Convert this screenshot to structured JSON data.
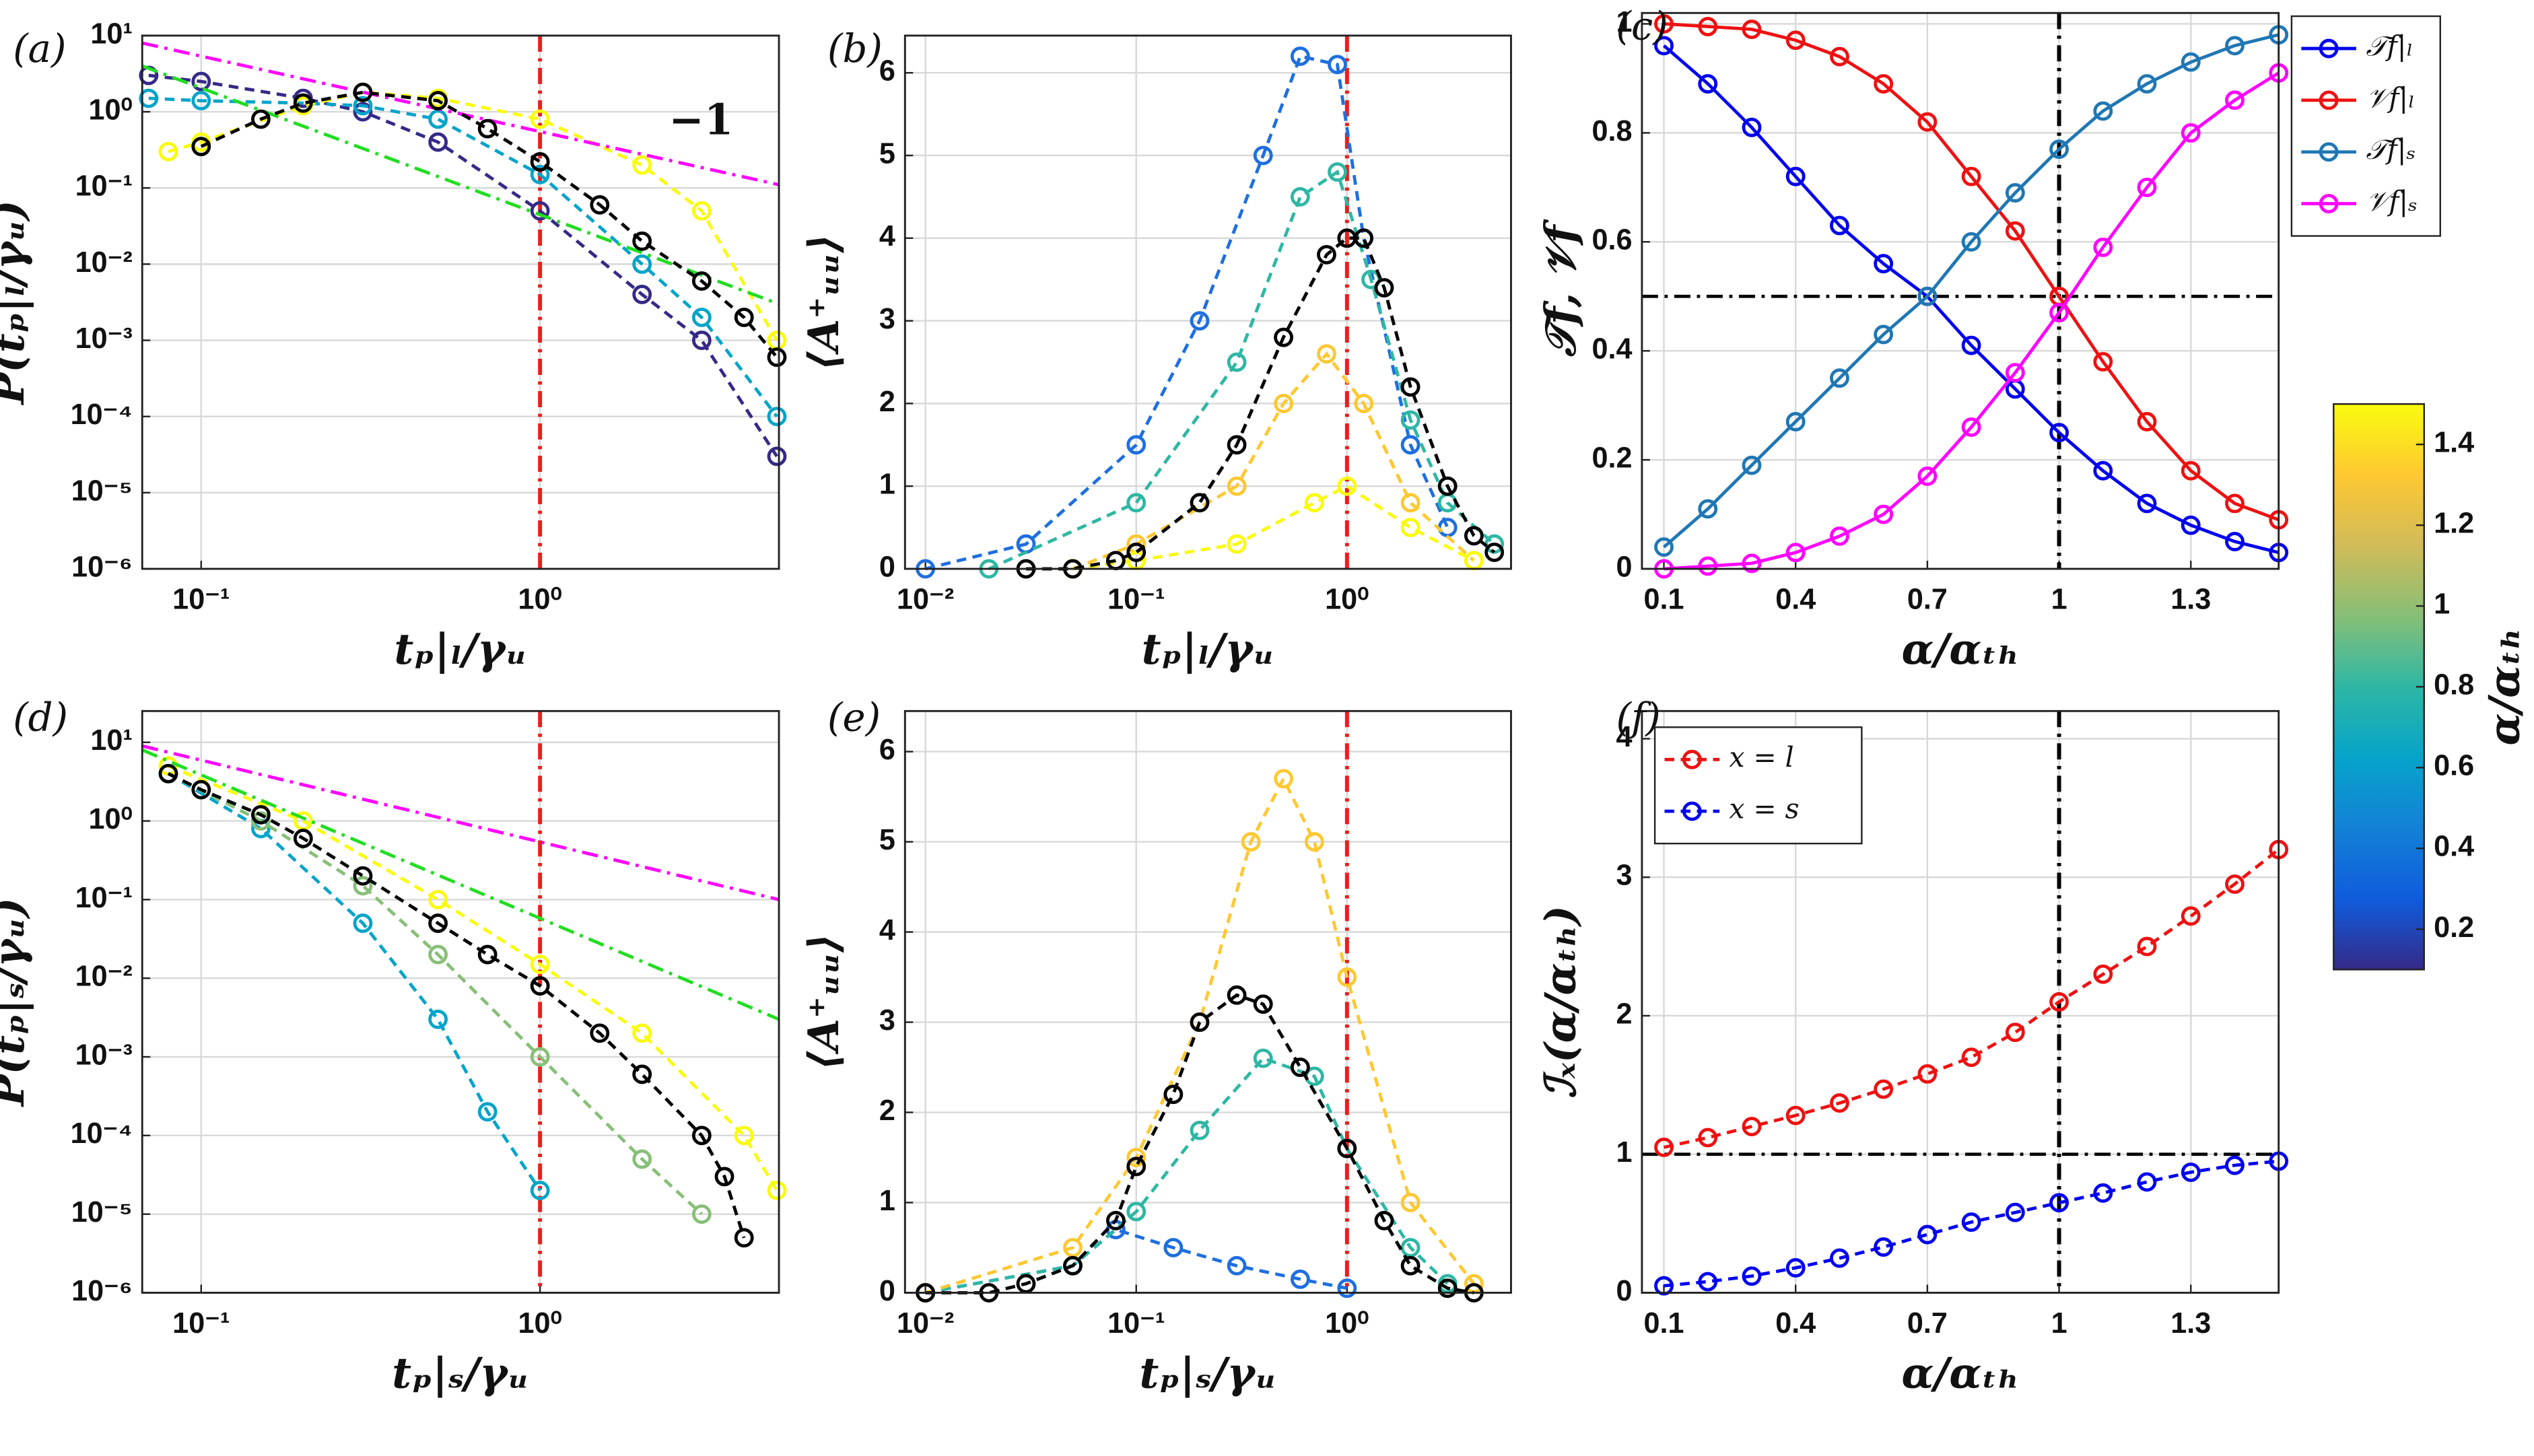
{
  "chart_data": [
    {
      "type": "line",
      "title": "(a)",
      "xlabel": "tₚ|ₗ/γᵤ",
      "ylabel": "P(tₚ|ₗ/γᵤ)",
      "xscale": "log",
      "yscale": "log",
      "grid": true,
      "xlim": [
        0.067,
        5.07
      ],
      "ylim": [
        1e-06,
        10
      ],
      "xticks": [
        {
          "value": 0.1,
          "label": "10⁻¹"
        },
        {
          "value": 1,
          "label": "10⁰"
        }
      ],
      "yticks": [
        {
          "value": 1e-06,
          "label": "10⁻⁶"
        },
        {
          "value": 1e-05,
          "label": "10⁻⁵"
        },
        {
          "value": 0.0001,
          "label": "10⁻⁴"
        },
        {
          "value": 0.001,
          "label": "10⁻³"
        },
        {
          "value": 0.01,
          "label": "10⁻²"
        },
        {
          "value": 0.1,
          "label": "10⁻¹"
        },
        {
          "value": 1,
          "label": "10⁰"
        },
        {
          "value": 10,
          "label": "10¹"
        }
      ],
      "vlines": [
        {
          "value": 1,
          "color": "#e8201c"
        }
      ],
      "series": [
        {
          "color": "#352a87",
          "style": "dashed",
          "marker": true,
          "x": [
            0.07,
            0.1,
            0.2,
            0.3,
            0.5,
            1,
            2,
            3,
            5
          ],
          "values": [
            3,
            2.5,
            1.5,
            1,
            0.4,
            0.05,
            0.004,
            0.001,
            3e-05
          ]
        },
        {
          "color": "#06a4ca",
          "style": "dashed",
          "marker": true,
          "x": [
            0.07,
            0.1,
            0.2,
            0.3,
            0.5,
            1,
            2,
            3,
            5
          ],
          "values": [
            1.5,
            1.4,
            1.3,
            1.2,
            0.8,
            0.15,
            0.01,
            0.002,
            0.0001
          ]
        },
        {
          "color": "#f9fb0e",
          "style": "dashed",
          "marker": true,
          "x": [
            0.08,
            0.1,
            0.2,
            0.3,
            0.5,
            1,
            2,
            3,
            5
          ],
          "values": [
            0.3,
            0.4,
            1.2,
            1.8,
            1.5,
            0.8,
            0.2,
            0.05,
            0.001
          ]
        },
        {
          "color": "#ff00ff",
          "style": "dashdot",
          "marker": false,
          "x": [
            0.067,
            5.07
          ],
          "values": [
            8,
            0.11
          ]
        },
        {
          "color": "#22dd22",
          "style": "dashdot",
          "marker": false,
          "x": [
            0.067,
            5.07
          ],
          "values": [
            4,
            0.003
          ]
        },
        {
          "color": "#000000",
          "style": "dashed",
          "marker": true,
          "x": [
            0.1,
            0.15,
            0.2,
            0.3,
            0.5,
            0.7,
            1,
            1.5,
            2,
            3,
            4,
            5
          ],
          "values": [
            0.35,
            0.8,
            1.3,
            1.8,
            1.4,
            0.6,
            0.22,
            0.06,
            0.02,
            0.006,
            0.002,
            0.0006
          ]
        }
      ],
      "annotations": [
        {
          "text": "−1",
          "x": 2.4,
          "y": 0.7,
          "color": "#ff00ff"
        }
      ]
    },
    {
      "type": "line",
      "title": "(b)",
      "xlabel": "tₚ|ₗ/γᵤ",
      "ylabel": "⟨A⁺ᵤᵤ⟩",
      "xscale": "log",
      "grid": true,
      "xlim": [
        0.008,
        6
      ],
      "ylim": [
        0,
        6.45
      ],
      "xticks": [
        {
          "value": 0.01,
          "label": "10⁻²"
        },
        {
          "value": 0.1,
          "label": "10⁻¹"
        },
        {
          "value": 1,
          "label": "10⁰"
        }
      ],
      "yticks": [
        0,
        1,
        2,
        3,
        4,
        5,
        6
      ],
      "vlines": [
        {
          "value": 1,
          "color": "#e8201c"
        }
      ],
      "series": [
        {
          "color": "#1e6fe0",
          "style": "dashed",
          "marker": true,
          "x": [
            0.01,
            0.03,
            0.1,
            0.2,
            0.4,
            0.6,
            0.9,
            1.2,
            2,
            3
          ],
          "values": [
            0,
            0.3,
            1.5,
            3,
            5,
            6.2,
            6.1,
            4,
            1.5,
            0.5
          ]
        },
        {
          "color": "#2eb7a4",
          "style": "dashed",
          "marker": true,
          "x": [
            0.02,
            0.1,
            0.3,
            0.6,
            0.9,
            1.3,
            2,
            3,
            5
          ],
          "values": [
            0,
            0.8,
            2.5,
            4.5,
            4.8,
            3.5,
            1.8,
            0.8,
            0.3
          ]
        },
        {
          "color": "#fec832",
          "style": "dashed",
          "marker": true,
          "x": [
            0.05,
            0.1,
            0.3,
            0.5,
            0.8,
            1.2,
            2,
            4
          ],
          "values": [
            0,
            0.3,
            1,
            2,
            2.6,
            2,
            0.8,
            0.1
          ]
        },
        {
          "color": "#f9fb0e",
          "style": "dashed",
          "marker": true,
          "x": [
            0.05,
            0.1,
            0.3,
            0.7,
            1,
            2,
            4
          ],
          "values": [
            0,
            0.1,
            0.3,
            0.8,
            1,
            0.5,
            0.1
          ]
        },
        {
          "color": "#000000",
          "style": "dashed",
          "marker": true,
          "x": [
            0.03,
            0.05,
            0.08,
            0.1,
            0.2,
            0.3,
            0.5,
            0.8,
            1,
            1.2,
            1.5,
            2,
            3,
            4,
            5
          ],
          "values": [
            0,
            0,
            0.1,
            0.2,
            0.8,
            1.5,
            2.8,
            3.8,
            4,
            4,
            3.4,
            2.2,
            1,
            0.4,
            0.2
          ]
        }
      ]
    },
    {
      "type": "line",
      "title": "(c)",
      "xlabel": "α/αₜₕ",
      "ylabel": "𝒯f, 𝒱f",
      "grid": true,
      "legend": "outside-right",
      "xlim": [
        0.05,
        1.5
      ],
      "ylim": [
        0,
        1.02
      ],
      "xticks": [
        0.1,
        0.4,
        0.7,
        1,
        1.3
      ],
      "yticks": [
        0,
        0.2,
        0.4,
        0.6,
        0.8,
        1
      ],
      "hlines": [
        {
          "value": 0.5,
          "color": "#000000"
        }
      ],
      "vlines": [
        {
          "value": 1,
          "color": "#000000"
        }
      ],
      "series": [
        {
          "name": "𝒯f|ₗ",
          "color": "#0000ee",
          "style": "solid",
          "marker": true,
          "x": [
            0.1,
            0.2,
            0.3,
            0.4,
            0.5,
            0.6,
            0.7,
            0.8,
            0.9,
            1,
            1.1,
            1.2,
            1.3,
            1.4,
            1.5
          ],
          "values": [
            0.96,
            0.89,
            0.81,
            0.72,
            0.63,
            0.56,
            0.5,
            0.41,
            0.33,
            0.25,
            0.18,
            0.12,
            0.08,
            0.05,
            0.03
          ]
        },
        {
          "name": "𝒱f|ₗ",
          "color": "#ee1111",
          "style": "solid",
          "marker": true,
          "x": [
            0.1,
            0.2,
            0.3,
            0.4,
            0.5,
            0.6,
            0.7,
            0.8,
            0.9,
            1,
            1.1,
            1.2,
            1.3,
            1.4,
            1.5
          ],
          "values": [
            1,
            0.995,
            0.99,
            0.97,
            0.94,
            0.89,
            0.82,
            0.72,
            0.62,
            0.5,
            0.38,
            0.27,
            0.18,
            0.12,
            0.09
          ]
        },
        {
          "name": "𝒯f|ₛ",
          "color": "#1f77b4",
          "style": "solid",
          "marker": true,
          "x": [
            0.1,
            0.2,
            0.3,
            0.4,
            0.5,
            0.6,
            0.7,
            0.8,
            0.9,
            1,
            1.1,
            1.2,
            1.3,
            1.4,
            1.5
          ],
          "values": [
            0.04,
            0.11,
            0.19,
            0.27,
            0.35,
            0.43,
            0.5,
            0.6,
            0.69,
            0.77,
            0.84,
            0.89,
            0.93,
            0.96,
            0.98
          ]
        },
        {
          "name": "𝒱f|ₛ",
          "color": "#ff00ff",
          "style": "solid",
          "marker": true,
          "x": [
            0.1,
            0.2,
            0.3,
            0.4,
            0.5,
            0.6,
            0.7,
            0.8,
            0.9,
            1,
            1.1,
            1.2,
            1.3,
            1.4,
            1.5
          ],
          "values": [
            0,
            0.005,
            0.01,
            0.03,
            0.06,
            0.1,
            0.17,
            0.26,
            0.36,
            0.47,
            0.59,
            0.7,
            0.8,
            0.86,
            0.91
          ]
        }
      ]
    },
    {
      "type": "line",
      "title": "(d)",
      "xlabel": "tₚ|ₛ/γᵤ",
      "ylabel": "P(tₚ|ₛ/γᵤ)",
      "xscale": "log",
      "yscale": "log",
      "grid": true,
      "xlim": [
        0.067,
        5.07
      ],
      "ylim": [
        1e-06,
        25
      ],
      "xticks": [
        {
          "value": 0.1,
          "label": "10⁻¹"
        },
        {
          "value": 1,
          "label": "10⁰"
        }
      ],
      "yticks": [
        {
          "value": 1e-06,
          "label": "10⁻⁶"
        },
        {
          "value": 1e-05,
          "label": "10⁻⁵"
        },
        {
          "value": 0.0001,
          "label": "10⁻⁴"
        },
        {
          "value": 0.001,
          "label": "10⁻³"
        },
        {
          "value": 0.01,
          "label": "10⁻²"
        },
        {
          "value": 0.1,
          "label": "10⁻¹"
        },
        {
          "value": 1,
          "label": "10⁰"
        },
        {
          "value": 10,
          "label": "10¹"
        }
      ],
      "vlines": [
        {
          "value": 1,
          "color": "#e8201c"
        }
      ],
      "series": [
        {
          "color": "#06a4ca",
          "style": "dashed",
          "marker": true,
          "x": [
            0.08,
            0.15,
            0.3,
            0.5,
            0.7,
            1
          ],
          "values": [
            4,
            0.8,
            0.05,
            0.003,
            0.0002,
            2e-05
          ]
        },
        {
          "color": "#87bf77",
          "style": "dashed",
          "marker": true,
          "x": [
            0.08,
            0.15,
            0.3,
            0.5,
            1,
            2,
            3
          ],
          "values": [
            4,
            1,
            0.15,
            0.02,
            0.001,
            5e-05,
            1e-05
          ]
        },
        {
          "color": "#f9fb0e",
          "style": "dashed",
          "marker": true,
          "x": [
            0.08,
            0.2,
            0.5,
            1,
            2,
            4,
            5
          ],
          "values": [
            5,
            1,
            0.1,
            0.015,
            0.002,
            0.0001,
            2e-05
          ]
        },
        {
          "color": "#ff00ff",
          "style": "dashdot",
          "marker": false,
          "x": [
            0.067,
            5.07
          ],
          "values": [
            9,
            0.1
          ]
        },
        {
          "color": "#22dd22",
          "style": "dashdot",
          "marker": false,
          "x": [
            0.067,
            5.07
          ],
          "values": [
            8,
            0.003
          ]
        },
        {
          "color": "#000000",
          "style": "dashed",
          "marker": true,
          "x": [
            0.08,
            0.1,
            0.15,
            0.2,
            0.3,
            0.5,
            0.7,
            1,
            1.5,
            2,
            3,
            3.5,
            4
          ],
          "values": [
            4,
            2.5,
            1.2,
            0.6,
            0.2,
            0.05,
            0.02,
            0.008,
            0.002,
            0.0006,
            0.0001,
            3e-05,
            5e-06
          ]
        }
      ]
    },
    {
      "type": "line",
      "title": "(e)",
      "xlabel": "tₚ|ₛ/γᵤ",
      "ylabel": "⟨A⁺ᵤᵤ⟩",
      "xscale": "log",
      "grid": true,
      "xlim": [
        0.008,
        6
      ],
      "ylim": [
        0,
        6.45
      ],
      "xticks": [
        {
          "value": 0.01,
          "label": "10⁻²"
        },
        {
          "value": 0.1,
          "label": "10⁻¹"
        },
        {
          "value": 1,
          "label": "10⁰"
        }
      ],
      "yticks": [
        0,
        1,
        2,
        3,
        4,
        5,
        6
      ],
      "vlines": [
        {
          "value": 1,
          "color": "#e8201c"
        }
      ],
      "series": [
        {
          "color": "#1e6fe0",
          "style": "dashed",
          "marker": true,
          "x": [
            0.01,
            0.05,
            0.08,
            0.15,
            0.3,
            0.6,
            1
          ],
          "values": [
            0,
            0.3,
            0.7,
            0.5,
            0.3,
            0.15,
            0.05
          ]
        },
        {
          "color": "#2eb7a4",
          "style": "dashed",
          "marker": true,
          "x": [
            0.01,
            0.05,
            0.1,
            0.2,
            0.4,
            0.7,
            1,
            2,
            3
          ],
          "values": [
            0,
            0.3,
            0.9,
            1.8,
            2.6,
            2.4,
            1.6,
            0.5,
            0.1
          ]
        },
        {
          "color": "#fec832",
          "style": "dashed",
          "marker": true,
          "x": [
            0.01,
            0.05,
            0.1,
            0.2,
            0.35,
            0.5,
            0.7,
            1,
            2,
            4
          ],
          "values": [
            0,
            0.5,
            1.5,
            3,
            5,
            5.7,
            5,
            3.5,
            1,
            0.1
          ]
        },
        {
          "color": "#000000",
          "style": "dashed",
          "marker": true,
          "x": [
            0.01,
            0.02,
            0.03,
            0.05,
            0.08,
            0.1,
            0.15,
            0.2,
            0.3,
            0.4,
            0.6,
            1,
            1.5,
            2,
            3,
            4
          ],
          "values": [
            0,
            0,
            0.1,
            0.3,
            0.8,
            1.4,
            2.2,
            3,
            3.3,
            3.2,
            2.5,
            1.6,
            0.8,
            0.3,
            0.05,
            0
          ]
        }
      ]
    },
    {
      "type": "line",
      "title": "(f)",
      "xlabel": "α/αₜₕ",
      "ylabel": "ℐₓ(α/αₜₕ)",
      "grid": true,
      "legend": "upper-left",
      "xlim": [
        0.05,
        1.5
      ],
      "ylim": [
        0,
        4.2
      ],
      "xticks": [
        0.1,
        0.4,
        0.7,
        1,
        1.3
      ],
      "yticks": [
        0,
        1,
        2,
        3,
        4
      ],
      "hlines": [
        {
          "value": 1,
          "color": "#000000"
        }
      ],
      "vlines": [
        {
          "value": 1,
          "color": "#000000"
        }
      ],
      "series": [
        {
          "name": "x = l",
          "color": "#ee1111",
          "style": "dashed",
          "marker": true,
          "x": [
            0.1,
            0.2,
            0.3,
            0.4,
            0.5,
            0.6,
            0.7,
            0.8,
            0.9,
            1,
            1.1,
            1.2,
            1.3,
            1.4,
            1.5
          ],
          "values": [
            1.05,
            1.12,
            1.2,
            1.28,
            1.37,
            1.47,
            1.58,
            1.7,
            1.88,
            2.1,
            2.3,
            2.5,
            2.72,
            2.95,
            3.2
          ]
        },
        {
          "name": "x = s",
          "color": "#0000ee",
          "style": "dashed",
          "marker": true,
          "x": [
            0.1,
            0.2,
            0.3,
            0.4,
            0.5,
            0.6,
            0.7,
            0.8,
            0.9,
            1,
            1.1,
            1.2,
            1.3,
            1.4,
            1.5
          ],
          "values": [
            0.05,
            0.08,
            0.12,
            0.18,
            0.25,
            0.33,
            0.42,
            0.51,
            0.58,
            0.65,
            0.72,
            0.8,
            0.87,
            0.92,
            0.95
          ]
        }
      ]
    },
    {
      "type": "colorbar",
      "label": "α/αₜₕ",
      "lim": [
        0.1,
        1.5
      ],
      "ticks": [
        0.2,
        0.4,
        0.6,
        0.8,
        1,
        1.2,
        1.4
      ],
      "colors": [
        "#352a87",
        "#0f5cdd",
        "#1481d6",
        "#06a4ca",
        "#2eb7a4",
        "#87bf77",
        "#d1bb59",
        "#fec832",
        "#f9fb0e"
      ]
    }
  ]
}
